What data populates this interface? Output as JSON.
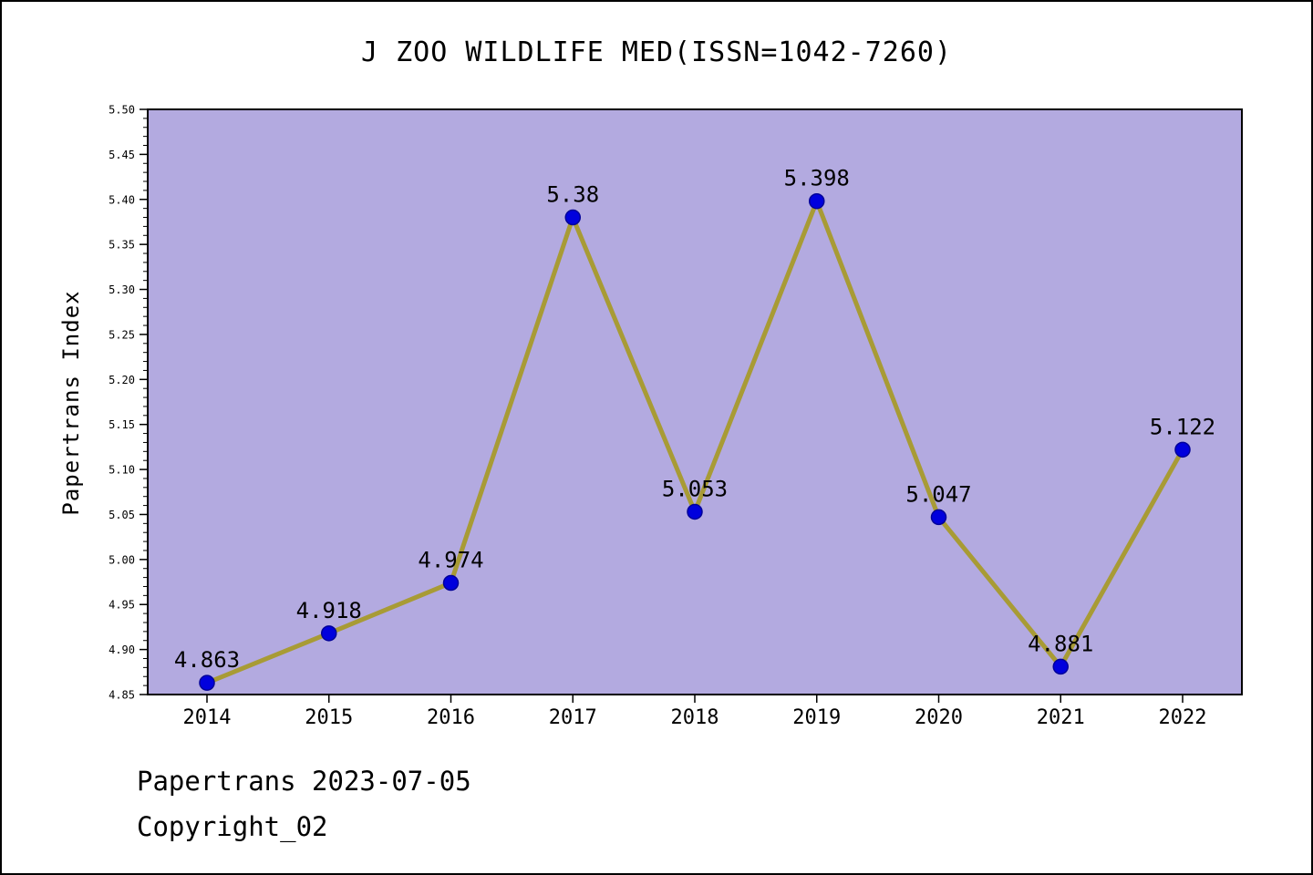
{
  "chart_data": {
    "type": "line",
    "title": "J ZOO WILDLIFE MED(ISSN=1042-7260)",
    "ylabel": "Papertrans Index",
    "xlabel": "",
    "categories": [
      "2014",
      "2015",
      "2016",
      "2017",
      "2018",
      "2019",
      "2020",
      "2021",
      "2022"
    ],
    "values": [
      4.863,
      4.918,
      4.974,
      5.38,
      5.053,
      5.398,
      5.047,
      4.881,
      5.122
    ],
    "point_labels": [
      "4.863",
      "4.918",
      "4.974",
      "5.38",
      "5.053",
      "5.398",
      "5.047",
      "4.881",
      "5.122"
    ],
    "ylim": [
      4.85,
      5.5
    ],
    "ytick_step": 0.05,
    "ytick_minor_step": 0.01,
    "grid": false,
    "legend": "none",
    "colors": {
      "plot_background": "#b3aae0",
      "line": "#a89b35",
      "marker": "#0000dd",
      "marker_edge": "#000099",
      "axis": "#000000",
      "text": "#000000"
    }
  },
  "footer": {
    "line1": "Papertrans 2023-07-05",
    "line2": "Copyright_02"
  }
}
